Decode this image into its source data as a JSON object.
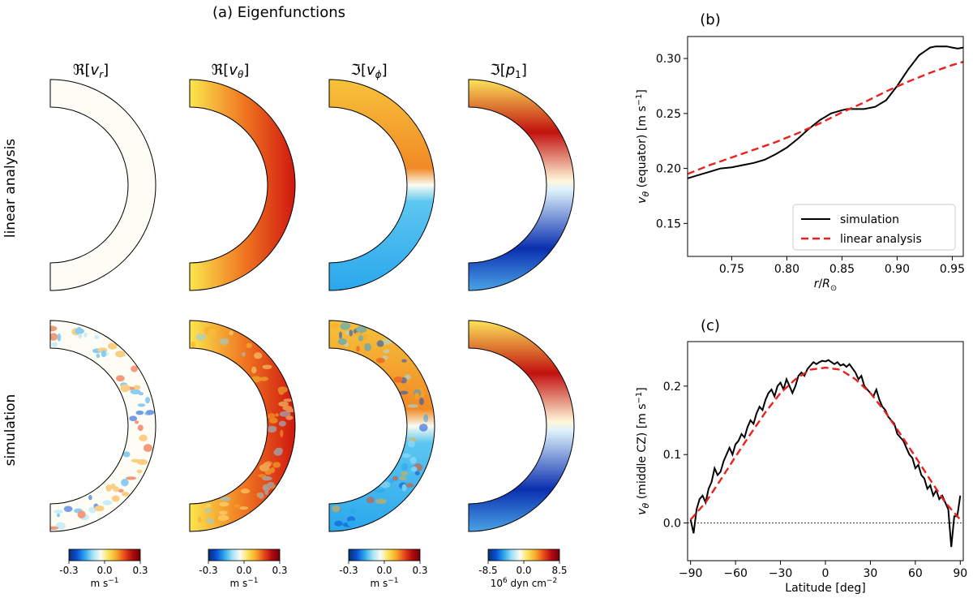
{
  "panel_a": {
    "title": "(a) Eigenfunctions",
    "columns": [
      {
        "label": "ℜ[v_r]",
        "re": "ℜ[",
        "sym": "v",
        "sub": "r",
        "cb_ticks": [
          "-0.3",
          "0.0",
          "0.3"
        ],
        "cb_unit": "m s−1"
      },
      {
        "label": "ℜ[v_θ]",
        "re": "ℜ[",
        "sym": "v",
        "sub": "θ",
        "cb_ticks": [
          "-0.3",
          "0.0",
          "0.3"
        ],
        "cb_unit": "m s−1"
      },
      {
        "label": "ℑ[v_φ]",
        "re": "ℑ[",
        "sym": "v",
        "sub": "ϕ",
        "cb_ticks": [
          "-0.3",
          "0.0",
          "0.3"
        ],
        "cb_unit": "m s−1"
      },
      {
        "label": "ℑ[p_1]",
        "re": "ℑ[",
        "sym": "p",
        "sub": "1",
        "cb_ticks": [
          "-8.5",
          "0.0",
          "8.5"
        ],
        "cb_unit": "10^6 dyn cm−2"
      }
    ],
    "rows": [
      "linear analysis",
      "simulation"
    ]
  },
  "colors": {
    "simulation": "#000000",
    "linear": "#e8211d",
    "cmap": [
      "#08306b",
      "#0a4fd6",
      "#2aa7ec",
      "#9fe2f6",
      "#fbfbf3",
      "#fbe35a",
      "#f7a928",
      "#e94a1a",
      "#b20a10",
      "#6e0008"
    ]
  },
  "chart_data": [
    {
      "id": "b",
      "type": "line",
      "panel_label": "(b)",
      "title": "",
      "xlabel": "r/R⊙",
      "ylabel": "vθ (equator) [m s−1]",
      "xlim": [
        0.71,
        0.96
      ],
      "ylim": [
        0.12,
        0.32
      ],
      "xticks": [
        0.75,
        0.8,
        0.85,
        0.9,
        0.95
      ],
      "xtick_labels": [
        "0.75",
        "0.80",
        "0.85",
        "0.90",
        "0.95"
      ],
      "yticks": [
        0.15,
        0.2,
        0.25,
        0.3
      ],
      "ytick_labels": [
        "0.15",
        "0.20",
        "0.25",
        "0.30"
      ],
      "legend": {
        "position": "lower-right",
        "entries": [
          "simulation",
          "linear analysis"
        ]
      },
      "series": [
        {
          "name": "simulation",
          "style": "solid",
          "x": [
            0.71,
            0.72,
            0.73,
            0.74,
            0.75,
            0.76,
            0.77,
            0.78,
            0.79,
            0.8,
            0.81,
            0.82,
            0.83,
            0.84,
            0.85,
            0.855,
            0.86,
            0.87,
            0.88,
            0.89,
            0.9,
            0.91,
            0.92,
            0.93,
            0.935,
            0.94,
            0.945,
            0.95,
            0.955,
            0.96
          ],
          "y": [
            0.191,
            0.194,
            0.197,
            0.2,
            0.201,
            0.203,
            0.205,
            0.208,
            0.213,
            0.219,
            0.227,
            0.236,
            0.244,
            0.25,
            0.253,
            0.254,
            0.254,
            0.254,
            0.256,
            0.262,
            0.275,
            0.29,
            0.303,
            0.31,
            0.311,
            0.311,
            0.311,
            0.31,
            0.309,
            0.31
          ]
        },
        {
          "name": "linear analysis",
          "style": "dashed",
          "x": [
            0.71,
            0.73,
            0.75,
            0.77,
            0.79,
            0.81,
            0.83,
            0.85,
            0.87,
            0.89,
            0.91,
            0.93,
            0.95,
            0.96
          ],
          "y": [
            0.195,
            0.203,
            0.21,
            0.217,
            0.224,
            0.232,
            0.241,
            0.251,
            0.26,
            0.27,
            0.279,
            0.287,
            0.294,
            0.297
          ]
        }
      ]
    },
    {
      "id": "c",
      "type": "line",
      "panel_label": "(c)",
      "title": "",
      "xlabel": "Latitude [deg]",
      "ylabel": "vθ (middle CZ) [m s−1]",
      "xlim": [
        -92,
        92
      ],
      "ylim": [
        -0.055,
        0.265
      ],
      "xticks": [
        -90,
        -60,
        -30,
        0,
        30,
        60,
        90
      ],
      "xtick_labels": [
        "−90",
        "−60",
        "−30",
        "0",
        "30",
        "60",
        "90"
      ],
      "yticks": [
        0.0,
        0.1,
        0.2
      ],
      "ytick_labels": [
        "0.0",
        "0.1",
        "0.2"
      ],
      "hline": 0.0,
      "series": [
        {
          "name": "simulation",
          "style": "solid",
          "x": [
            -90,
            -88,
            -86,
            -84,
            -82,
            -80,
            -78,
            -76,
            -74,
            -72,
            -70,
            -68,
            -66,
            -64,
            -62,
            -60,
            -58,
            -56,
            -54,
            -52,
            -50,
            -48,
            -46,
            -44,
            -42,
            -40,
            -38,
            -36,
            -34,
            -32,
            -30,
            -28,
            -26,
            -24,
            -22,
            -20,
            -18,
            -16,
            -14,
            -12,
            -10,
            -8,
            -6,
            -4,
            -2,
            0,
            2,
            4,
            6,
            8,
            10,
            12,
            14,
            16,
            18,
            20,
            22,
            24,
            26,
            28,
            30,
            32,
            34,
            36,
            38,
            40,
            42,
            44,
            46,
            48,
            50,
            52,
            54,
            56,
            58,
            60,
            62,
            64,
            66,
            68,
            70,
            72,
            74,
            76,
            78,
            80,
            82,
            84,
            86,
            88,
            90
          ],
          "y": [
            0.005,
            -0.015,
            0.02,
            0.035,
            0.04,
            0.03,
            0.05,
            0.06,
            0.08,
            0.07,
            0.075,
            0.09,
            0.1,
            0.11,
            0.1,
            0.115,
            0.12,
            0.13,
            0.125,
            0.14,
            0.15,
            0.145,
            0.16,
            0.17,
            0.165,
            0.18,
            0.19,
            0.195,
            0.185,
            0.2,
            0.205,
            0.195,
            0.21,
            0.2,
            0.19,
            0.2,
            0.215,
            0.22,
            0.215,
            0.225,
            0.23,
            0.235,
            0.232,
            0.235,
            0.237,
            0.236,
            0.238,
            0.235,
            0.232,
            0.235,
            0.23,
            0.232,
            0.228,
            0.232,
            0.226,
            0.22,
            0.21,
            0.215,
            0.2,
            0.195,
            0.19,
            0.185,
            0.195,
            0.18,
            0.17,
            0.165,
            0.155,
            0.15,
            0.145,
            0.13,
            0.125,
            0.12,
            0.11,
            0.1,
            0.095,
            0.08,
            0.085,
            0.07,
            0.065,
            0.05,
            0.055,
            0.04,
            0.048,
            0.035,
            0.04,
            0.03,
            0.02,
            -0.035,
            0.01,
            0.01,
            0.04
          ]
        },
        {
          "name": "linear analysis",
          "style": "dashed",
          "x": [
            -90,
            -80,
            -70,
            -60,
            -50,
            -40,
            -30,
            -20,
            -10,
            0,
            10,
            20,
            30,
            40,
            50,
            60,
            70,
            80,
            90
          ],
          "y": [
            0.005,
            0.03,
            0.063,
            0.097,
            0.13,
            0.162,
            0.19,
            0.21,
            0.224,
            0.227,
            0.224,
            0.21,
            0.19,
            0.162,
            0.13,
            0.097,
            0.063,
            0.03,
            0.005
          ]
        }
      ]
    }
  ]
}
